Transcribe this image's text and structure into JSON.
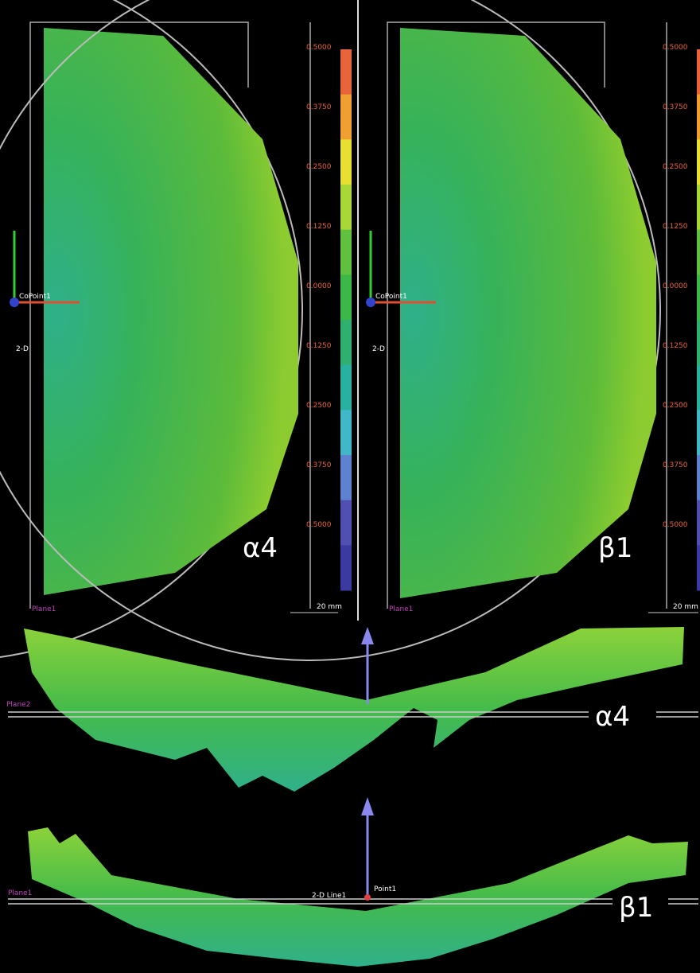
{
  "panels": [
    {
      "label": "α4",
      "scale": "20 mm",
      "plane": "Plane1",
      "origin": "CoPoint1",
      "line": "2-D"
    },
    {
      "label": "β1",
      "scale": "20 mm",
      "plane": "Plane1",
      "origin": "CoPoint1",
      "line": "2-D"
    }
  ],
  "color_scale": {
    "ticks": [
      "0.5000",
      "0.3750",
      "0.2500",
      "0.1250",
      "0.0000",
      "0.1250",
      "0.2500",
      "0.3750",
      "0.5000"
    ]
  },
  "sections": [
    {
      "label": "α4",
      "plane": "Plane2"
    },
    {
      "label": "β1",
      "plane": "Plane1",
      "line": "2-D Line1",
      "point": "Point1"
    }
  ]
}
